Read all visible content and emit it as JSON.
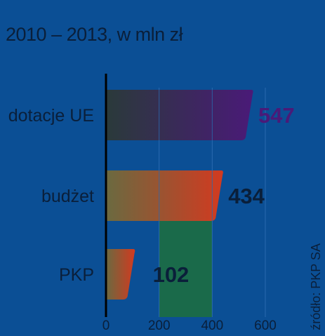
{
  "subtitle": "2010 – 2013, w mln zł",
  "source": "źródło: PKP SA",
  "chart_data": {
    "type": "bar",
    "orientation": "horizontal",
    "title": "",
    "subtitle": "2010 – 2013, w mln zł",
    "xlabel": "",
    "ylabel": "",
    "categories": [
      "dotacje UE",
      "budżet",
      "PKP"
    ],
    "values": [
      547,
      434,
      102
    ],
    "value_labels": [
      "547",
      "434",
      "102"
    ],
    "xlim": [
      0,
      600
    ],
    "x_ticks": [
      0,
      200,
      400,
      600
    ],
    "x_tick_labels": [
      "0",
      "200",
      "400",
      "600"
    ],
    "grid": true,
    "legend": "none",
    "highlight_band": {
      "from": 200,
      "to": 400,
      "color": "#1a6a4a"
    },
    "bar_gradients": [
      {
        "start": "#2a3a3a",
        "end": "#4a1a78"
      },
      {
        "start": "#6a6a40",
        "end": "#d23a20"
      },
      {
        "start": "#6a6a40",
        "end": "#d23a20"
      }
    ],
    "colors": {
      "background": "#0b4f95",
      "text": "#0a1f3a",
      "axis": "#000000",
      "grid": "#2a6ab0",
      "value_label_first": "#4a1a78"
    }
  }
}
